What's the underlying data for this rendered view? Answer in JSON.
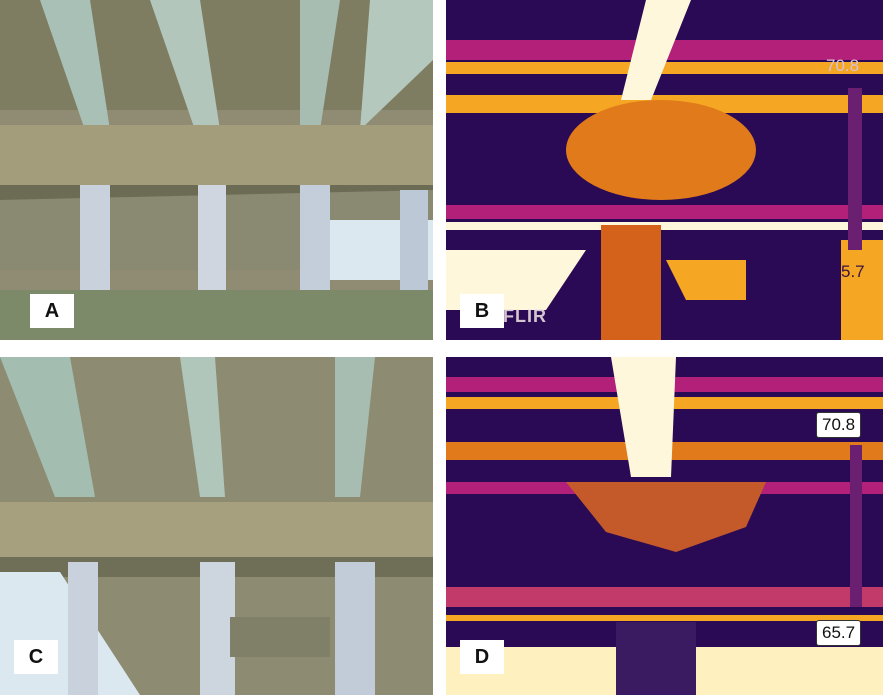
{
  "panels": {
    "a": {
      "label": "A"
    },
    "b": {
      "label": "B",
      "scale_max": "70.8",
      "scale_min": "5.7",
      "brand": "FLIR"
    },
    "c": {
      "label": "C"
    },
    "d": {
      "label": "D",
      "scale_max": "70.8",
      "scale_min": "65.7"
    }
  },
  "colors": {
    "photo_concrete": "#b9b49a",
    "photo_sky": "#dbe8ef",
    "thermal_dark": "#2a0a55",
    "thermal_mid": "#b3207a",
    "thermal_hot": "#f5a623",
    "thermal_white": "#fff7dc"
  }
}
